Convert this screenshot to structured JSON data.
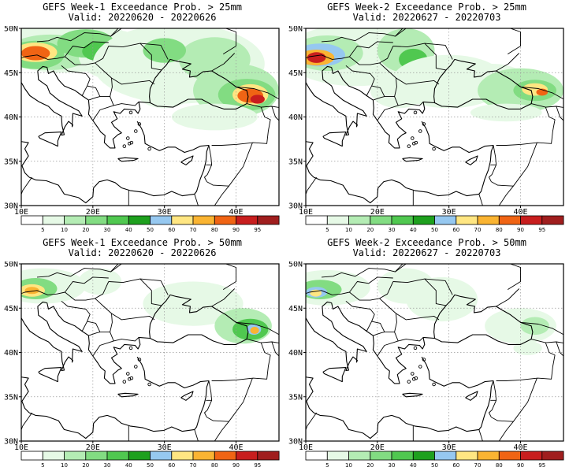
{
  "panels": [
    {
      "title": "GEFS Week-1 Exceedance Prob. > 25mm",
      "valid": "Valid: 20220620 - 20220626"
    },
    {
      "title": "GEFS Week-2 Exceedance Prob. > 25mm",
      "valid": "Valid: 20220627 - 20220703"
    },
    {
      "title": "GEFS Week-1 Exceedance Prob. > 50mm",
      "valid": "Valid: 20220620 - 20220626"
    },
    {
      "title": "GEFS Week-2 Exceedance Prob. > 50mm",
      "valid": "Valid: 20220627 - 20220703"
    }
  ],
  "axes": {
    "lat_labels": [
      "50N",
      "45N",
      "40N",
      "35N",
      "30N"
    ],
    "lon_labels": [
      "10E",
      "20E",
      "30E",
      "40E"
    ]
  },
  "colorbar": {
    "levels": [
      "5",
      "10",
      "20",
      "30",
      "40",
      "50",
      "60",
      "70",
      "80",
      "90",
      "95"
    ],
    "colors": [
      "#ffffff",
      "#e6f9e6",
      "#b4ecb4",
      "#82dc82",
      "#50c850",
      "#1ea01e",
      "#96c8f0",
      "#ffe682",
      "#fab432",
      "#f06414",
      "#c81e1e",
      "#a01e1e"
    ]
  }
}
